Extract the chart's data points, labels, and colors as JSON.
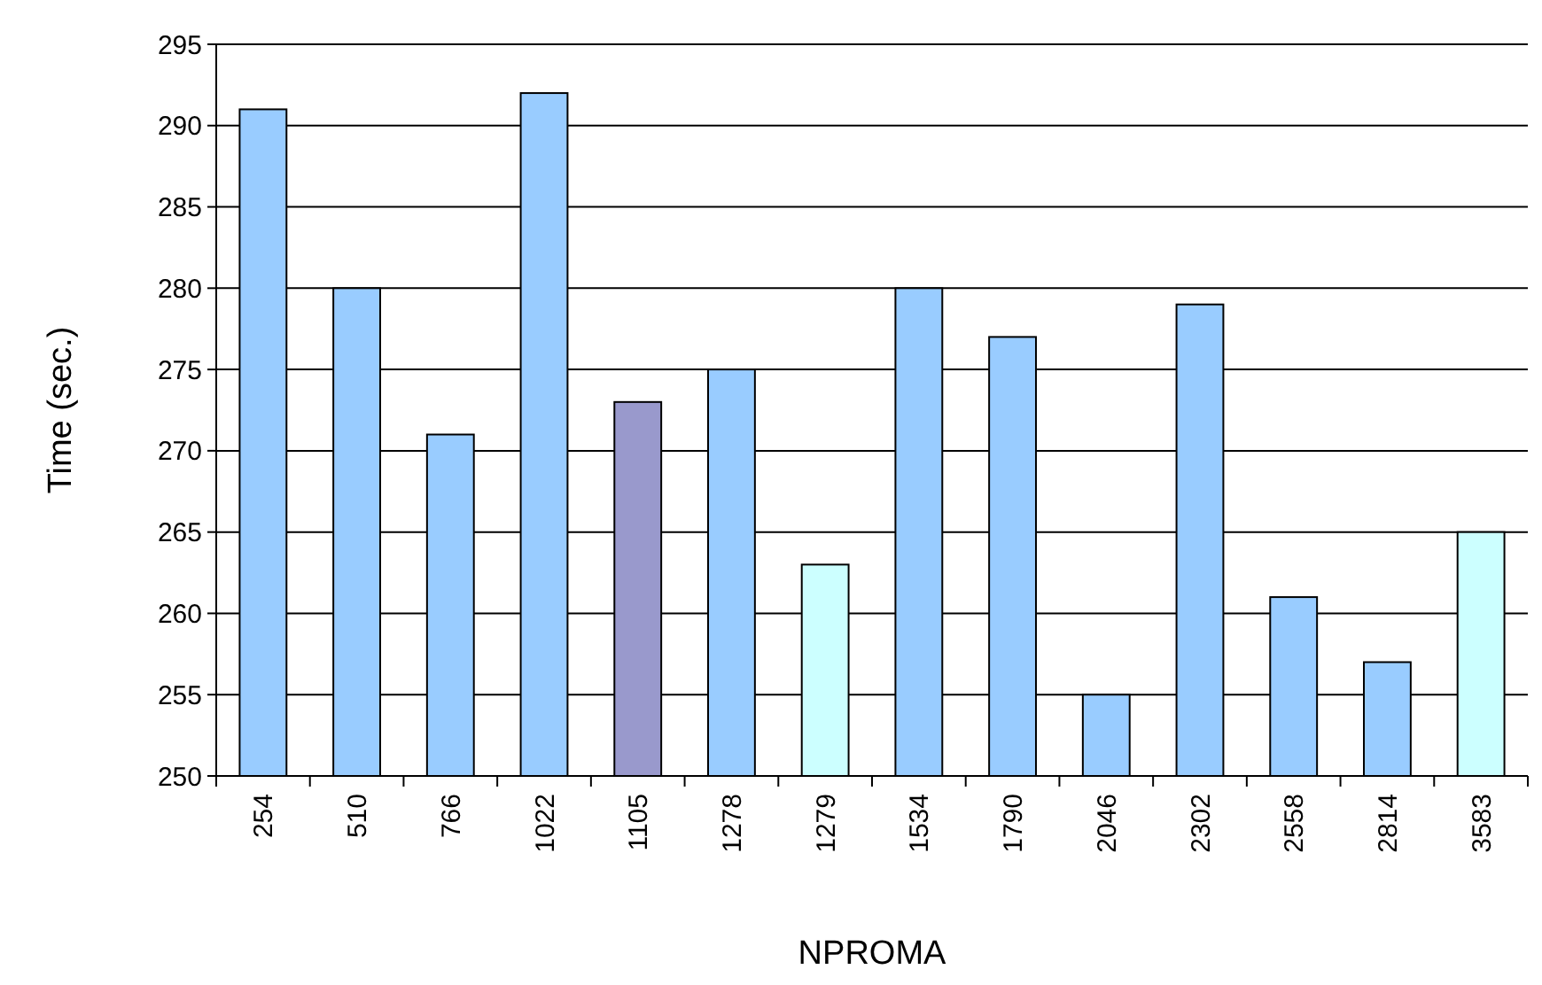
{
  "chart_data": {
    "type": "bar",
    "xlabel": "NPROMA",
    "ylabel": "Time (sec.)",
    "categories": [
      "254",
      "510",
      "766",
      "1022",
      "1105",
      "1278",
      "1279",
      "1534",
      "1790",
      "2046",
      "2302",
      "2558",
      "2814",
      "3583"
    ],
    "values": [
      291,
      280,
      271,
      292,
      273,
      275,
      263,
      280,
      277,
      255,
      279,
      261,
      257,
      265
    ],
    "colors": [
      "#99ccff",
      "#99ccff",
      "#99ccff",
      "#99ccff",
      "#9999cc",
      "#99ccff",
      "#ccffff",
      "#99ccff",
      "#99ccff",
      "#99ccff",
      "#99ccff",
      "#99ccff",
      "#99ccff",
      "#ccffff"
    ],
    "ylim": [
      250,
      295
    ],
    "yticks": [
      250,
      255,
      260,
      265,
      270,
      275,
      280,
      285,
      290,
      295
    ],
    "grid": "y"
  }
}
